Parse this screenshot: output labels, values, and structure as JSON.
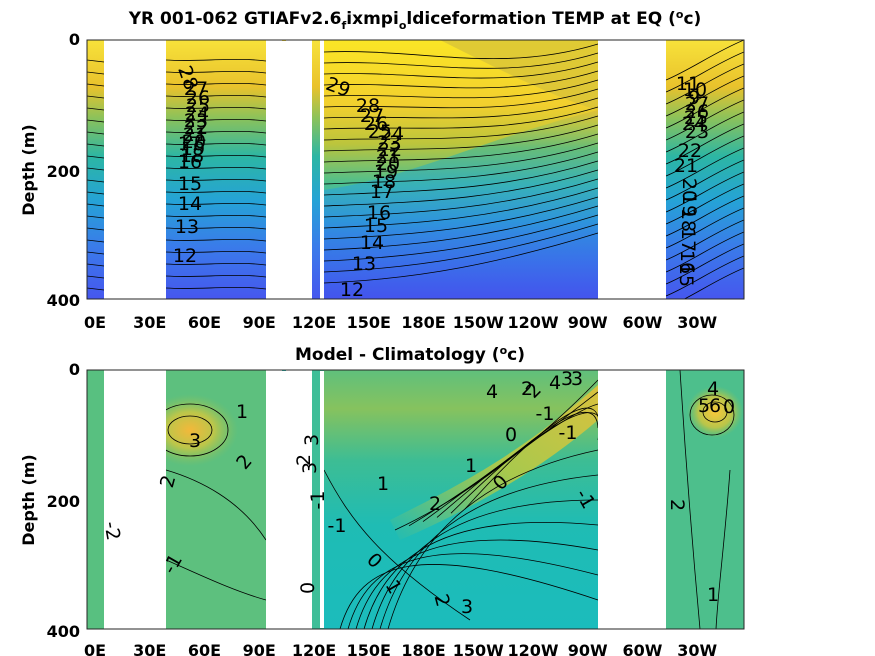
{
  "chart_data": [
    {
      "type": "heatmap",
      "title_parts": [
        "YR 001-062 GTIAFv2.6",
        "f",
        "ixmpi",
        "o",
        "ldiceformation TEMP at EQ (",
        "o",
        "c)"
      ],
      "ylabel": "Depth (m)",
      "ylim": [
        400,
        0
      ],
      "yticks": [
        "0",
        "200",
        "400"
      ],
      "xticks": [
        "0E",
        "30E",
        "60E",
        "90E",
        "120E",
        "150E",
        "180E",
        "150W",
        "120W",
        "90W",
        "60W",
        "30W"
      ],
      "contour_labels": [
        "28",
        "27",
        "26",
        "25",
        "24",
        "23",
        "22",
        "21",
        "20",
        "19",
        "18",
        "17",
        "16",
        "15",
        "14",
        "13",
        "12",
        "29",
        "28",
        "27",
        "26",
        "25",
        "24",
        "23",
        "22",
        "21",
        "20",
        "19",
        "18",
        "17",
        "16",
        "15",
        "14",
        "13",
        "12",
        "11",
        "10",
        "9",
        "27",
        "26",
        "25",
        "24",
        "23",
        "22",
        "21",
        "20",
        "19",
        "18",
        "17",
        "16",
        "15",
        "14",
        "13",
        "12",
        "11",
        "10"
      ],
      "colormap": "parula",
      "color_range": "9 to 29 (blue to yellow)",
      "gaps": [
        "Africa",
        "Maritime Continent",
        "South America"
      ]
    },
    {
      "type": "heatmap",
      "title_parts": [
        "Model - Climatology (",
        "o",
        "c)"
      ],
      "ylabel": "Depth (m)",
      "ylim": [
        400,
        0
      ],
      "yticks": [
        "0",
        "200",
        "400"
      ],
      "xticks": [
        "0E",
        "30E",
        "60E",
        "90E",
        "120E",
        "150E",
        "180E",
        "150W",
        "120W",
        "90W",
        "60W",
        "30W"
      ],
      "contour_labels": [
        "1",
        "3",
        "2",
        "2",
        "-2",
        "-1",
        "2",
        "3",
        "3",
        "-1",
        "-1",
        "0",
        "1",
        "0",
        "1",
        "2",
        "3",
        "4",
        "2",
        "4",
        "3",
        "2",
        "1",
        "0",
        "-1",
        "-1",
        "-1",
        "0",
        "2",
        "3",
        "4",
        "5",
        "6",
        "0",
        "2",
        "1"
      ],
      "colormap": "parula",
      "color_range": "-3 to 6",
      "gaps": [
        "Africa",
        "Maritime Continent",
        "South America"
      ]
    }
  ]
}
